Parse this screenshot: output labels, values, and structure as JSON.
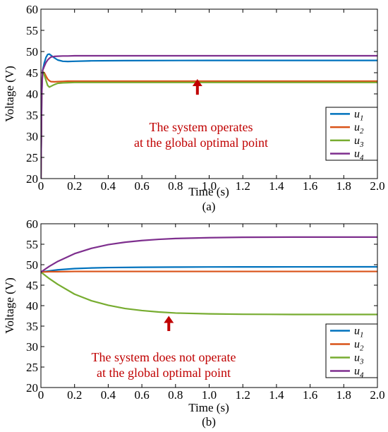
{
  "chart_data": [
    {
      "type": "line",
      "panel_label": "(a)",
      "xlabel": "Time (s)",
      "ylabel": "Voltage (V)",
      "xlim": [
        0,
        2.0
      ],
      "ylim": [
        20,
        60
      ],
      "xticks": [
        "0",
        "0.2",
        "0.4",
        "0.6",
        "0.8",
        "1.0",
        "1.2",
        "1.4",
        "1.6",
        "1.8",
        "2.0"
      ],
      "yticks": [
        "20",
        "25",
        "30",
        "35",
        "40",
        "45",
        "50",
        "55",
        "60"
      ],
      "annotation": [
        "The system operates",
        "at the global optimal point"
      ],
      "arrow_at": {
        "x": 0.93,
        "y_tip": 43.5,
        "y_tail": 39.8
      },
      "legend": {
        "position": "right",
        "entries": [
          {
            "base": "u",
            "sub": "1"
          },
          {
            "base": "u",
            "sub": "2"
          },
          {
            "base": "u",
            "sub": "3"
          },
          {
            "base": "u",
            "sub": "4"
          }
        ]
      },
      "series": [
        {
          "color": "#0072bd",
          "x": [
            0,
            0.005,
            0.01,
            0.02,
            0.03,
            0.04,
            0.05,
            0.06,
            0.08,
            0.1,
            0.13,
            0.16,
            0.2,
            0.3,
            0.5,
            1.0,
            1.5,
            2.0
          ],
          "y": [
            20,
            40,
            45.5,
            47.3,
            48.6,
            49.3,
            49.4,
            49.1,
            48.5,
            48.0,
            47.7,
            47.65,
            47.7,
            47.8,
            47.85,
            47.9,
            47.9,
            47.9
          ]
        },
        {
          "color": "#d95319",
          "x": [
            0,
            0.005,
            0.01,
            0.02,
            0.03,
            0.04,
            0.05,
            0.06,
            0.08,
            0.1,
            0.13,
            0.16,
            0.2,
            0.3,
            0.5,
            1.0,
            1.5,
            2.0
          ],
          "y": [
            20,
            41,
            45.2,
            45.0,
            44.2,
            43.5,
            43.1,
            42.9,
            42.85,
            42.9,
            42.95,
            43.0,
            43.0,
            43.0,
            43.0,
            43.0,
            43.0,
            43.0
          ]
        },
        {
          "color": "#77ac30",
          "x": [
            0,
            0.005,
            0.01,
            0.02,
            0.03,
            0.04,
            0.05,
            0.06,
            0.08,
            0.1,
            0.13,
            0.16,
            0.2,
            0.3,
            0.5,
            1.0,
            1.5,
            2.0
          ],
          "y": [
            20,
            41.5,
            45.5,
            44.5,
            43.2,
            42.0,
            41.6,
            41.8,
            42.2,
            42.5,
            42.6,
            42.65,
            42.7,
            42.7,
            42.7,
            42.7,
            42.7,
            42.7
          ]
        },
        {
          "color": "#7e2f8e",
          "x": [
            0,
            0.005,
            0.01,
            0.02,
            0.03,
            0.04,
            0.05,
            0.06,
            0.08,
            0.1,
            0.13,
            0.16,
            0.2,
            0.3,
            0.5,
            1.0,
            1.5,
            2.0
          ],
          "y": [
            20,
            40,
            45.5,
            46.5,
            47.4,
            48.0,
            48.4,
            48.7,
            48.85,
            48.9,
            48.95,
            48.95,
            49.0,
            49.0,
            49.0,
            49.0,
            49.0,
            49.0
          ]
        }
      ]
    },
    {
      "type": "line",
      "panel_label": "(b)",
      "xlabel": "Time (s)",
      "ylabel": "Voltage (V)",
      "xlim": [
        0,
        2.0
      ],
      "ylim": [
        20,
        60
      ],
      "xticks": [
        "0",
        "0.2",
        "0.4",
        "0.6",
        "0.8",
        "1.0",
        "1.2",
        "1.4",
        "1.6",
        "1.8",
        "2.0"
      ],
      "yticks": [
        "20",
        "25",
        "30",
        "35",
        "40",
        "45",
        "50",
        "55",
        "60"
      ],
      "annotation": [
        "The system does not operate",
        "at the global optimal point"
      ],
      "arrow_at": {
        "x": 0.76,
        "y_tip": 37.5,
        "y_tail": 33.8
      },
      "legend": {
        "position": "right",
        "entries": [
          {
            "base": "u",
            "sub": "1"
          },
          {
            "base": "u",
            "sub": "2"
          },
          {
            "base": "u",
            "sub": "3"
          },
          {
            "base": "u",
            "sub": "4"
          }
        ]
      },
      "series": [
        {
          "color": "#0072bd",
          "x": [
            0,
            0.05,
            0.1,
            0.2,
            0.3,
            0.4,
            0.6,
            0.8,
            1.0,
            1.2,
            1.5,
            2.0
          ],
          "y": [
            48.2,
            48.5,
            48.75,
            49.05,
            49.2,
            49.3,
            49.38,
            49.42,
            49.45,
            49.46,
            49.47,
            49.48
          ]
        },
        {
          "color": "#d95319",
          "x": [
            0,
            0.05,
            0.1,
            0.2,
            0.5,
            1.0,
            1.5,
            2.0
          ],
          "y": [
            48.2,
            48.3,
            48.3,
            48.35,
            48.35,
            48.35,
            48.35,
            48.35
          ]
        },
        {
          "color": "#77ac30",
          "x": [
            0,
            0.05,
            0.1,
            0.2,
            0.3,
            0.4,
            0.5,
            0.6,
            0.7,
            0.8,
            1.0,
            1.2,
            1.5,
            2.0
          ],
          "y": [
            48.2,
            46.6,
            45.2,
            42.8,
            41.2,
            40.1,
            39.3,
            38.8,
            38.45,
            38.2,
            38.0,
            37.9,
            37.85,
            37.85
          ]
        },
        {
          "color": "#7e2f8e",
          "x": [
            0,
            0.05,
            0.1,
            0.2,
            0.3,
            0.4,
            0.5,
            0.6,
            0.7,
            0.8,
            1.0,
            1.2,
            1.5,
            2.0
          ],
          "y": [
            48.2,
            49.6,
            50.8,
            52.7,
            54.0,
            54.9,
            55.5,
            55.9,
            56.2,
            56.4,
            56.6,
            56.7,
            56.75,
            56.75
          ]
        }
      ]
    }
  ]
}
